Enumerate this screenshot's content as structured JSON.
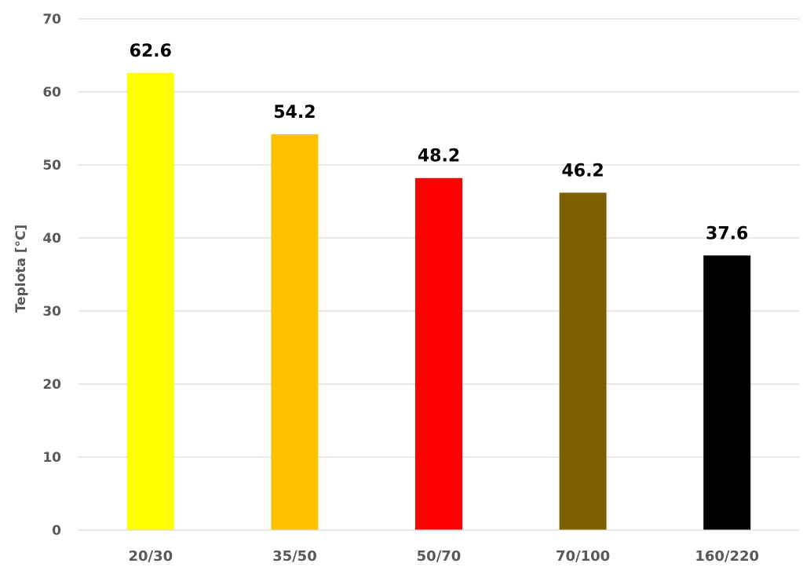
{
  "chart_data": {
    "type": "bar",
    "title": "",
    "xlabel": "",
    "ylabel": "Teplota [°C]",
    "ylim": [
      0,
      70
    ],
    "yticks": [
      0,
      10,
      20,
      30,
      40,
      50,
      60,
      70
    ],
    "grid": true,
    "legend": "none",
    "categories": [
      "20/30",
      "35/50",
      "50/70",
      "70/100",
      "160/220"
    ],
    "values": [
      62.6,
      54.2,
      48.2,
      46.2,
      37.6
    ],
    "data_labels": [
      "62.6",
      "54.2",
      "48.2",
      "46.2",
      "37.6"
    ],
    "colors": [
      "#FFFF00",
      "#FFC000",
      "#FF0000",
      "#7F6000",
      "#000000"
    ]
  }
}
